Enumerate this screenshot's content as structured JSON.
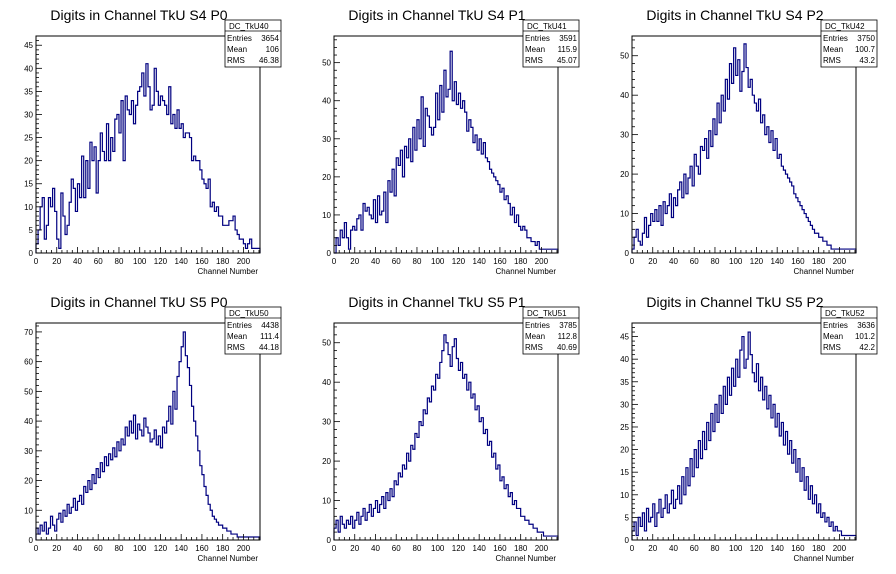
{
  "chart_data": [
    {
      "type": "histogram",
      "title": "Digits in Channel TkU S4 P0",
      "xlabel": "Channel Number",
      "ylabel": "",
      "xlim": [
        0,
        216
      ],
      "ylim": [
        0,
        47
      ],
      "yticks": [
        0,
        5,
        10,
        15,
        20,
        25,
        30,
        35,
        40,
        45
      ],
      "xticks": [
        0,
        20,
        40,
        60,
        80,
        100,
        120,
        140,
        160,
        180,
        200
      ],
      "color": "#000080",
      "stats": {
        "name": "DC_TkU40",
        "entries": "3654",
        "mean": "106",
        "rms": "46.38"
      },
      "bin_width": 2,
      "values": [
        2,
        5,
        10,
        12,
        3,
        6,
        12,
        10,
        14,
        9,
        3,
        1,
        13,
        8,
        4,
        6,
        11,
        16,
        14,
        9,
        15,
        12,
        21,
        12,
        20,
        14,
        24,
        20,
        23,
        13,
        20,
        26,
        22,
        20,
        28,
        20,
        25,
        22,
        29,
        30,
        26,
        33,
        20,
        34,
        31,
        30,
        33,
        28,
        32,
        35,
        36,
        39,
        34,
        41,
        36,
        31,
        32,
        40,
        35,
        32,
        34,
        33,
        32,
        30,
        36,
        28,
        30,
        27,
        31,
        27,
        28,
        25,
        26,
        26,
        25,
        20,
        21,
        20,
        20,
        18,
        16,
        15,
        14,
        16,
        10,
        11,
        9,
        10,
        8,
        8,
        6,
        6,
        6,
        7,
        7,
        8,
        5,
        4,
        3,
        3,
        2,
        1,
        2,
        3,
        1,
        1,
        1,
        1
      ]
    },
    {
      "type": "histogram",
      "title": "Digits in Channel TkU S4 P1",
      "xlabel": "Channel Number",
      "ylabel": "",
      "xlim": [
        0,
        216
      ],
      "ylim": [
        0,
        57
      ],
      "yticks": [
        0,
        10,
        20,
        30,
        40,
        50
      ],
      "xticks": [
        0,
        20,
        40,
        60,
        80,
        100,
        120,
        140,
        160,
        180,
        200
      ],
      "color": "#000080",
      "stats": {
        "name": "DC_TkU41",
        "entries": "3591",
        "mean": "115.9",
        "rms": "45.07"
      },
      "bin_width": 2,
      "values": [
        0,
        4,
        2,
        6,
        4,
        8,
        4,
        1,
        6,
        7,
        6,
        9,
        10,
        6,
        13,
        11,
        12,
        10,
        9,
        14,
        8,
        15,
        10,
        11,
        16,
        8,
        19,
        16,
        22,
        15,
        25,
        23,
        27,
        20,
        28,
        25,
        30,
        24,
        33,
        27,
        35,
        30,
        41,
        28,
        38,
        36,
        33,
        31,
        33,
        42,
        35,
        44,
        37,
        48,
        41,
        43,
        53,
        40,
        45,
        39,
        42,
        38,
        40,
        37,
        32,
        35,
        33,
        29,
        31,
        27,
        30,
        26,
        29,
        25,
        24,
        22,
        21,
        20,
        19,
        18,
        16,
        17,
        14,
        15,
        13,
        10,
        12,
        8,
        10,
        7,
        6,
        7,
        6,
        4,
        4,
        3,
        3,
        2,
        3,
        1,
        1,
        1,
        1,
        1,
        1,
        1,
        1,
        1
      ]
    },
    {
      "type": "histogram",
      "title": "Digits in Channel TkU S4 P2",
      "xlabel": "Channel Number",
      "ylabel": "",
      "xlim": [
        0,
        216
      ],
      "ylim": [
        0,
        55
      ],
      "yticks": [
        0,
        10,
        20,
        30,
        40,
        50
      ],
      "xticks": [
        0,
        20,
        40,
        60,
        80,
        100,
        120,
        140,
        160,
        180,
        200
      ],
      "color": "#000080",
      "stats": {
        "name": "DC_TkU42",
        "entries": "3750",
        "mean": "100.7",
        "rms": "43.2"
      },
      "bin_width": 2,
      "values": [
        1,
        4,
        6,
        3,
        2,
        5,
        9,
        4,
        7,
        10,
        8,
        11,
        8,
        12,
        7,
        13,
        10,
        12,
        15,
        9,
        14,
        12,
        16,
        18,
        14,
        20,
        15,
        19,
        22,
        17,
        25,
        22,
        20,
        27,
        26,
        29,
        24,
        31,
        27,
        34,
        30,
        38,
        33,
        40,
        36,
        44,
        39,
        48,
        43,
        52,
        45,
        49,
        41,
        46,
        53,
        47,
        42,
        44,
        40,
        38,
        36,
        39,
        33,
        35,
        30,
        32,
        28,
        31,
        26,
        29,
        24,
        25,
        22,
        21,
        20,
        19,
        18,
        17,
        15,
        14,
        13,
        12,
        11,
        10,
        9,
        8,
        7,
        6,
        5,
        5,
        4,
        4,
        3,
        3,
        2,
        2,
        1,
        1,
        1,
        1,
        1,
        1,
        1,
        1,
        1,
        1,
        1,
        1
      ]
    },
    {
      "type": "histogram",
      "title": "Digits in Channel TkU S5 P0",
      "xlabel": "Channel Number",
      "ylabel": "",
      "xlim": [
        0,
        216
      ],
      "ylim": [
        0,
        73
      ],
      "yticks": [
        0,
        10,
        20,
        30,
        40,
        50,
        60,
        70
      ],
      "xticks": [
        0,
        20,
        40,
        60,
        80,
        100,
        120,
        140,
        160,
        180,
        200
      ],
      "color": "#000080",
      "stats": {
        "name": "DC_TkU50",
        "entries": "4438",
        "mean": "111.4",
        "rms": "44.18"
      },
      "bin_width": 2,
      "values": [
        4,
        2,
        5,
        3,
        6,
        2,
        4,
        8,
        5,
        3,
        7,
        9,
        6,
        10,
        8,
        12,
        9,
        11,
        14,
        10,
        13,
        15,
        12,
        18,
        16,
        20,
        17,
        22,
        19,
        24,
        21,
        26,
        23,
        28,
        25,
        29,
        27,
        31,
        28,
        33,
        30,
        34,
        32,
        38,
        35,
        40,
        36,
        42,
        34,
        39,
        37,
        35,
        41,
        38,
        36,
        33,
        34,
        37,
        32,
        35,
        31,
        38,
        36,
        40,
        45,
        39,
        50,
        44,
        55,
        60,
        65,
        70,
        62,
        58,
        52,
        45,
        40,
        35,
        30,
        25,
        22,
        18,
        15,
        12,
        10,
        8,
        7,
        6,
        5,
        5,
        4,
        4,
        3,
        3,
        2,
        2,
        2,
        1,
        1,
        1,
        1,
        1,
        1,
        1,
        1,
        1,
        1,
        1
      ]
    },
    {
      "type": "histogram",
      "title": "Digits in Channel TkU S5 P1",
      "xlabel": "Channel Number",
      "ylabel": "",
      "xlim": [
        0,
        216
      ],
      "ylim": [
        0,
        55
      ],
      "yticks": [
        0,
        10,
        20,
        30,
        40,
        50
      ],
      "xticks": [
        0,
        20,
        40,
        60,
        80,
        100,
        120,
        140,
        160,
        180,
        200
      ],
      "color": "#000080",
      "stats": {
        "name": "DC_TkU51",
        "entries": "3785",
        "mean": "112.8",
        "rms": "40.69"
      },
      "bin_width": 2,
      "values": [
        3,
        5,
        2,
        6,
        4,
        3,
        5,
        4,
        6,
        3,
        5,
        7,
        4,
        6,
        8,
        5,
        7,
        9,
        6,
        8,
        10,
        7,
        9,
        11,
        8,
        12,
        10,
        13,
        11,
        15,
        14,
        17,
        16,
        19,
        18,
        22,
        20,
        24,
        23,
        27,
        26,
        30,
        29,
        33,
        32,
        36,
        35,
        39,
        38,
        42,
        41,
        45,
        48,
        52,
        50,
        47,
        44,
        49,
        51,
        46,
        43,
        45,
        41,
        42,
        38,
        40,
        36,
        37,
        33,
        34,
        30,
        31,
        27,
        28,
        24,
        25,
        21,
        22,
        18,
        19,
        15,
        16,
        13,
        14,
        11,
        12,
        9,
        10,
        8,
        8,
        6,
        6,
        5,
        5,
        4,
        4,
        3,
        3,
        2,
        2,
        2,
        1,
        1,
        1,
        1,
        1,
        1,
        1
      ]
    },
    {
      "type": "histogram",
      "title": "Digits in Channel TkU S5 P2",
      "xlabel": "Channel Number",
      "ylabel": "",
      "xlim": [
        0,
        216
      ],
      "ylim": [
        0,
        48
      ],
      "yticks": [
        0,
        5,
        10,
        15,
        20,
        25,
        30,
        35,
        40,
        45
      ],
      "xticks": [
        0,
        20,
        40,
        60,
        80,
        100,
        120,
        140,
        160,
        180,
        200
      ],
      "color": "#000080",
      "stats": {
        "name": "DC_TkU52",
        "entries": "3636",
        "mean": "101.2",
        "rms": "42.2"
      },
      "bin_width": 2,
      "values": [
        2,
        4,
        1,
        5,
        3,
        6,
        2,
        7,
        4,
        5,
        8,
        3,
        6,
        9,
        5,
        7,
        10,
        6,
        8,
        11,
        7,
        9,
        12,
        8,
        14,
        10,
        16,
        12,
        18,
        14,
        20,
        16,
        22,
        18,
        24,
        20,
        26,
        22,
        28,
        24,
        30,
        26,
        32,
        28,
        34,
        30,
        36,
        32,
        38,
        34,
        40,
        36,
        42,
        45,
        38,
        40,
        46,
        41,
        37,
        35,
        39,
        33,
        36,
        31,
        34,
        29,
        32,
        27,
        30,
        25,
        28,
        23,
        26,
        21,
        24,
        19,
        22,
        17,
        20,
        15,
        18,
        13,
        16,
        11,
        14,
        9,
        12,
        8,
        10,
        6,
        8,
        5,
        6,
        4,
        5,
        3,
        4,
        2,
        3,
        2,
        2,
        1,
        1,
        1,
        1,
        1,
        1,
        1
      ]
    }
  ]
}
